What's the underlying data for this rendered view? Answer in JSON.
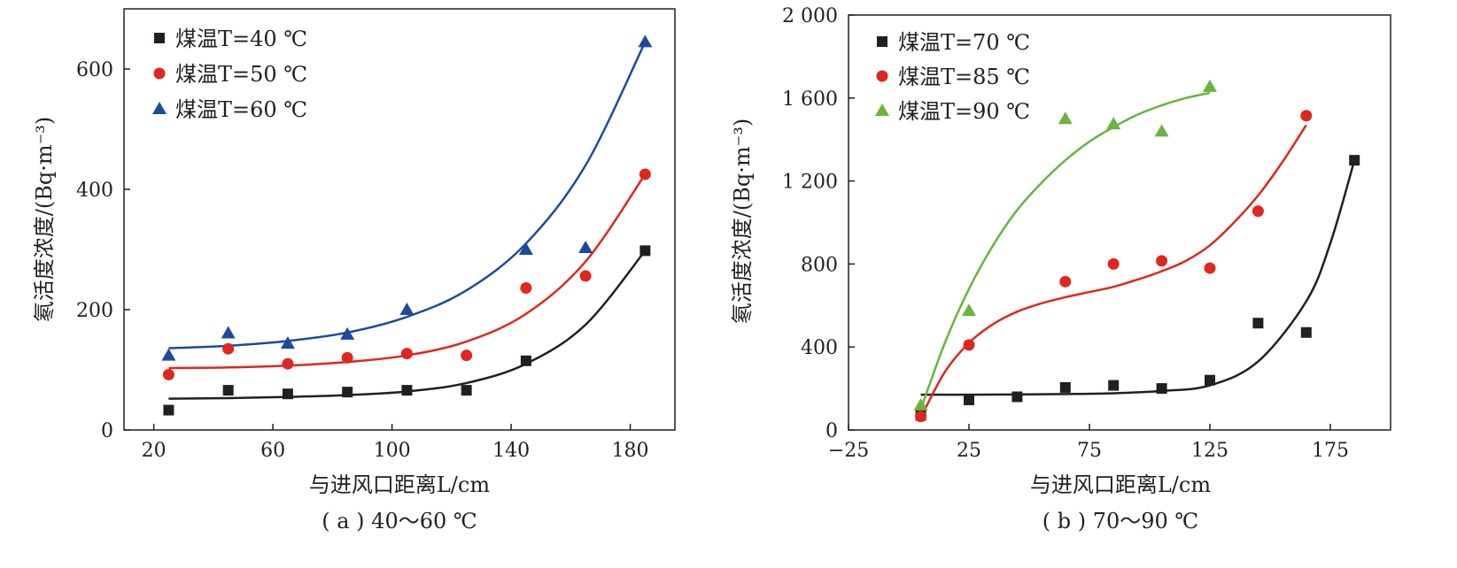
{
  "colors": {
    "black": "#231f20",
    "red": "#e0261e",
    "blue": "#1d4a9c",
    "green": "#6ab43e"
  },
  "chart_data": [
    {
      "panel": "a",
      "type": "scatter",
      "caption": "( a ) 40～60 ℃",
      "xlabel": "与进风口距离L/cm",
      "ylabel": "氡活度浓度/(Bq·m⁻³)",
      "xlim": [
        10,
        195
      ],
      "ylim": [
        0,
        700
      ],
      "xticks": [
        20,
        60,
        100,
        140,
        180
      ],
      "yticks": [
        0,
        200,
        400,
        600
      ],
      "xtick_labels": [
        "20",
        "60",
        "100",
        "140",
        "180"
      ],
      "ytick_labels": [
        "0",
        "200",
        "400",
        "600"
      ],
      "legend_position": "top-left",
      "series": [
        {
          "name": "煤温T=40 ℃",
          "marker": "square",
          "color": "#231f20",
          "x": [
            25,
            45,
            65,
            85,
            105,
            125,
            145,
            185
          ],
          "y": [
            33,
            66,
            60,
            63,
            66,
            66,
            115,
            298
          ],
          "fit": {
            "x": [
              25,
              45,
              65,
              85,
              105,
              125,
              145,
              165,
              185
            ],
            "y": [
              52,
              53,
              55,
              58,
              64,
              78,
              110,
              175,
              298
            ]
          }
        },
        {
          "name": "煤温T=50 ℃",
          "marker": "circle",
          "color": "#e0261e",
          "x": [
            25,
            45,
            65,
            85,
            105,
            125,
            145,
            165,
            185
          ],
          "y": [
            92,
            135,
            110,
            120,
            127,
            124,
            236,
            256,
            425
          ],
          "fit": {
            "x": [
              25,
              45,
              65,
              85,
              105,
              125,
              145,
              165,
              185
            ],
            "y": [
              103,
              104,
              107,
              113,
              124,
              147,
              193,
              280,
              425
            ]
          }
        },
        {
          "name": "煤温T=60 ℃",
          "marker": "triangle",
          "color": "#1d4a9c",
          "x": [
            25,
            45,
            65,
            85,
            105,
            145,
            165,
            185
          ],
          "y": [
            124,
            161,
            144,
            159,
            200,
            300,
            303,
            645
          ],
          "fit": {
            "x": [
              25,
              45,
              65,
              85,
              105,
              125,
              145,
              165,
              185
            ],
            "y": [
              136,
              140,
              148,
              162,
              188,
              232,
              310,
              440,
              645
            ]
          }
        }
      ]
    },
    {
      "panel": "b",
      "type": "scatter",
      "caption": "( b ) 70～90 ℃",
      "xlabel": "与进风口距离L/cm",
      "ylabel": "氡活度浓度/(Bq·m⁻³)",
      "xlim": [
        -25,
        200
      ],
      "ylim": [
        0,
        2000
      ],
      "xticks": [
        -25,
        25,
        75,
        125,
        175
      ],
      "yticks": [
        0,
        400,
        800,
        1200,
        1600,
        2000
      ],
      "xtick_labels": [
        "−25",
        "25",
        "75",
        "125",
        "175"
      ],
      "ytick_labels": [
        "0",
        "400",
        "800",
        "1 200",
        "1 600",
        "2 000"
      ],
      "legend_position": "top-left",
      "series": [
        {
          "name": "煤温T=70 ℃",
          "marker": "square",
          "color": "#231f20",
          "x": [
            5,
            25,
            45,
            65,
            85,
            105,
            125,
            145,
            165,
            185
          ],
          "y": [
            70,
            145,
            160,
            205,
            215,
            200,
            240,
            515,
            470,
            1300
          ],
          "fit": {
            "x": [
              5,
              25,
              45,
              65,
              85,
              105,
              125,
              145,
              165,
              175,
              185
            ],
            "y": [
              170,
              170,
              171,
              173,
              177,
              188,
              215,
              330,
              620,
              900,
              1300
            ]
          }
        },
        {
          "name": "煤温T=85 ℃",
          "marker": "circle",
          "color": "#e0261e",
          "x": [
            5,
            25,
            65,
            85,
            105,
            125,
            145,
            165
          ],
          "y": [
            65,
            410,
            715,
            800,
            815,
            780,
            1055,
            1515
          ],
          "fit": {
            "x": [
              5,
              15,
              25,
              35,
              45,
              55,
              65,
              75,
              85,
              95,
              105,
              115,
              125,
              135,
              145,
              155,
              165
            ],
            "y": [
              60,
              280,
              420,
              510,
              570,
              610,
              640,
              665,
              690,
              725,
              765,
              815,
              890,
              1000,
              1130,
              1290,
              1470
            ]
          }
        },
        {
          "name": "煤温T=90 ℃",
          "marker": "triangle",
          "color": "#6ab43e",
          "x": [
            5,
            25,
            65,
            85,
            105,
            125
          ],
          "y": [
            120,
            575,
            1500,
            1475,
            1440,
            1655
          ],
          "fit": {
            "x": [
              5,
              15,
              25,
              35,
              45,
              55,
              65,
              75,
              85,
              95,
              105,
              115,
              125
            ],
            "y": [
              100,
              420,
              680,
              890,
              1060,
              1190,
              1300,
              1390,
              1460,
              1520,
              1565,
              1600,
              1625
            ]
          }
        }
      ]
    }
  ]
}
